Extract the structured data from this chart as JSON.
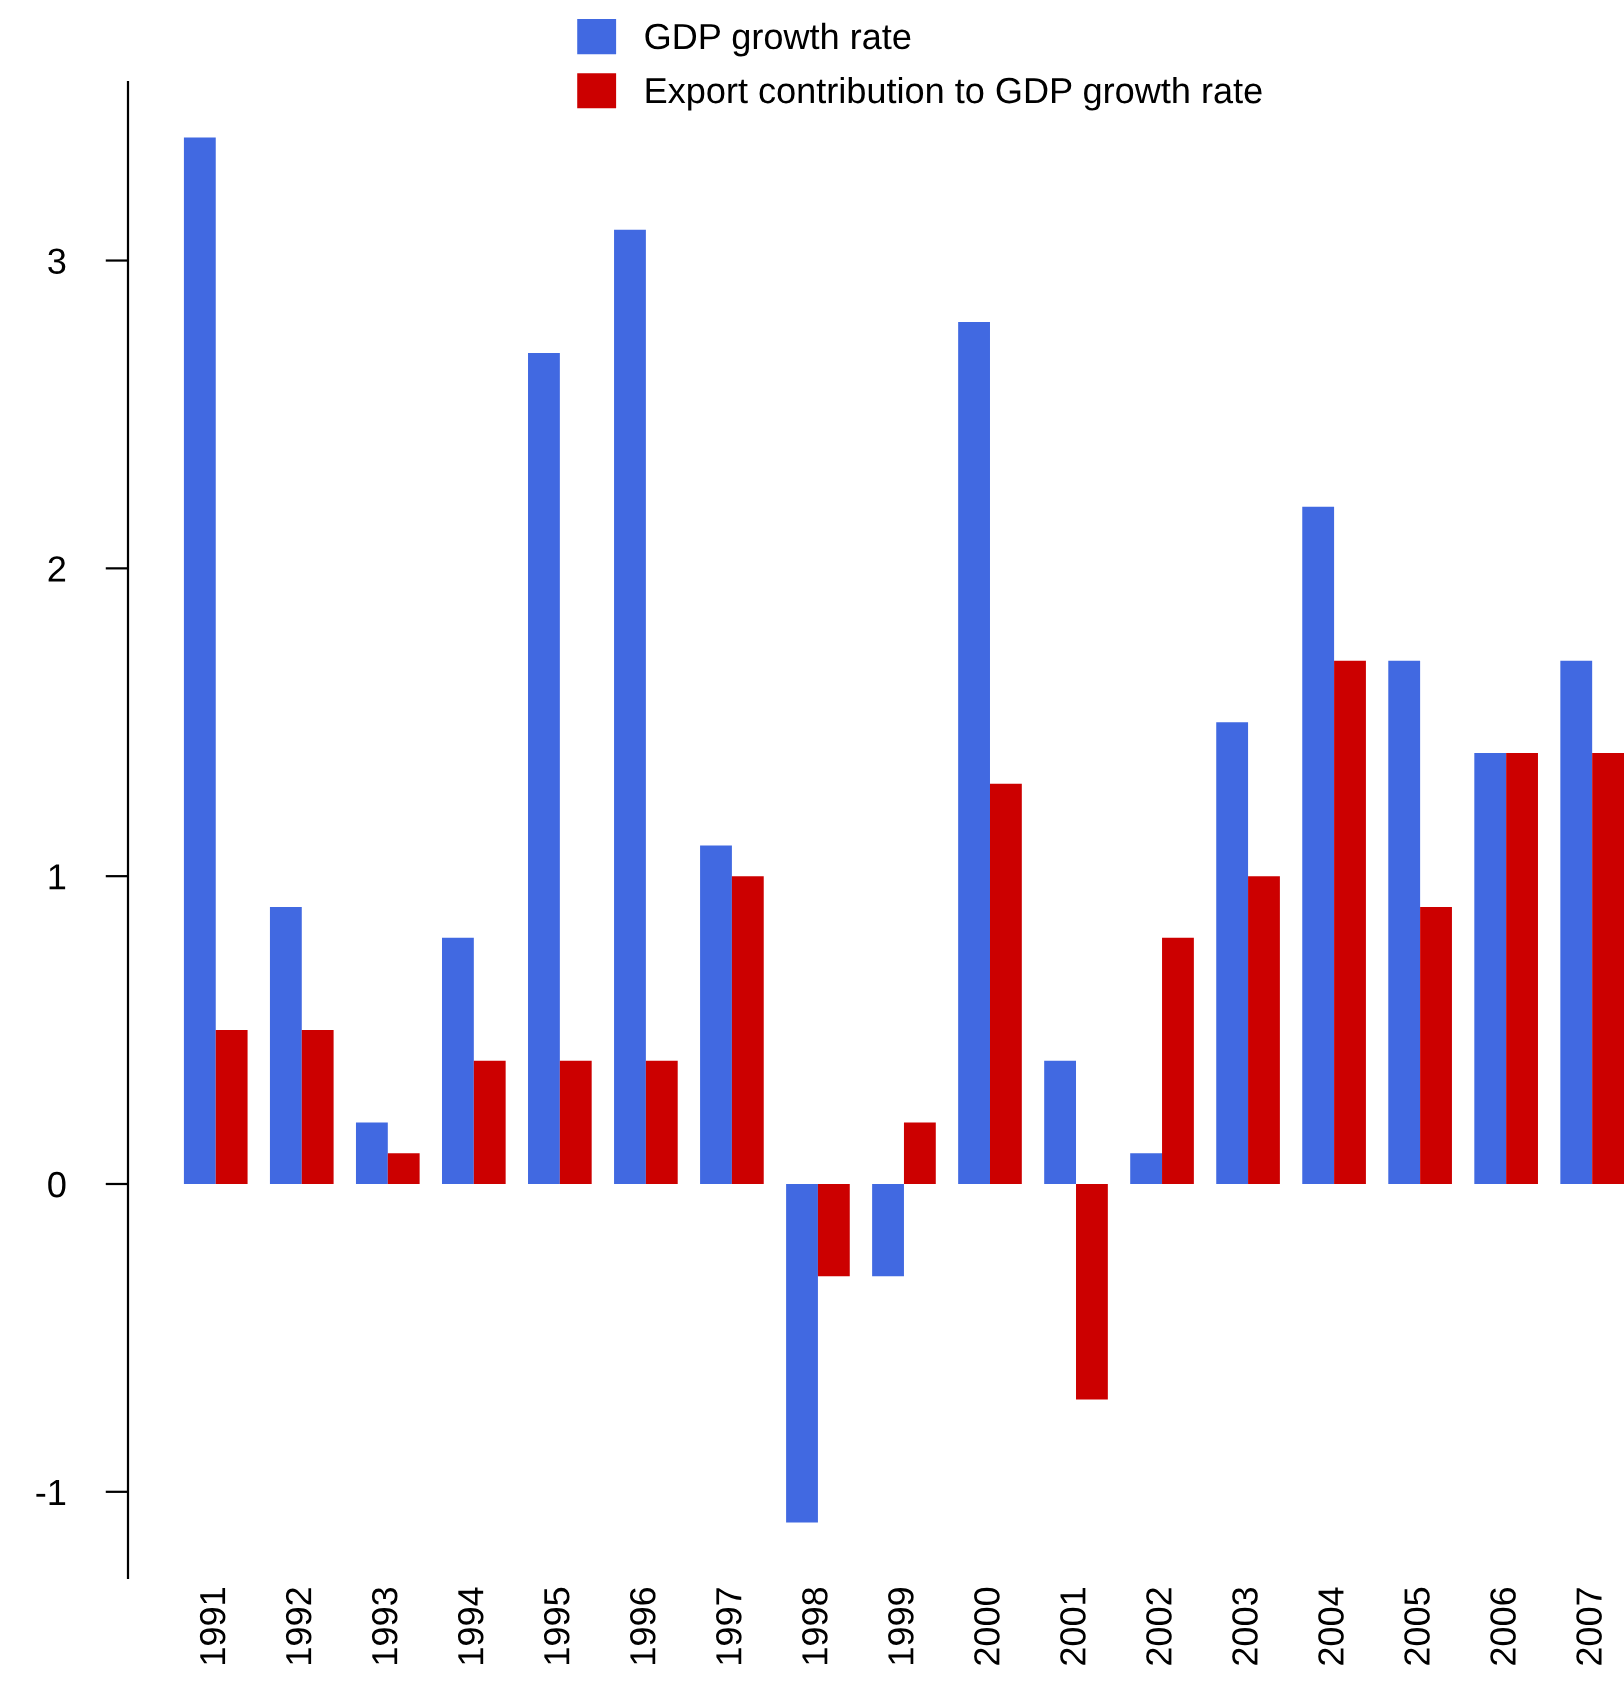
{
  "chart_data": {
    "type": "bar",
    "categories": [
      "1991",
      "1992",
      "1993",
      "1994",
      "1995",
      "1996",
      "1997",
      "1998",
      "1999",
      "2000",
      "2001",
      "2002",
      "2003",
      "2004",
      "2005",
      "2006",
      "2007"
    ],
    "series": [
      {
        "name": "GDP growth rate",
        "color": "#4169e1",
        "values": [
          3.4,
          0.9,
          0.2,
          0.8,
          2.7,
          3.1,
          1.1,
          -1.1,
          -0.3,
          2.8,
          0.4,
          0.1,
          1.5,
          2.2,
          1.7,
          1.4,
          1.7
        ]
      },
      {
        "name": "Export contribution to GDP growth rate",
        "color": "#cc0000",
        "values": [
          0.5,
          0.5,
          0.1,
          0.4,
          0.4,
          0.4,
          1.0,
          -0.3,
          0.2,
          1.3,
          -0.7,
          0.8,
          1.0,
          1.7,
          0.9,
          1.4,
          1.4
        ]
      }
    ],
    "ylim": [
      -1.28,
      3.58
    ],
    "yticks": [
      -1,
      0,
      1,
      2,
      3
    ],
    "grid": false,
    "legend": "top"
  }
}
